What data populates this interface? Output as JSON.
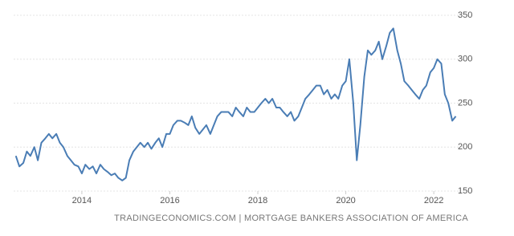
{
  "chart_data": {
    "type": "line",
    "source": "TRADINGECONOMICS.COM | MORTGAGE BANKERS ASSOCIATION OF AMERICA",
    "x": [
      2012.5,
      2012.58,
      2012.67,
      2012.75,
      2012.83,
      2012.92,
      2013,
      2013.08,
      2013.17,
      2013.25,
      2013.33,
      2013.42,
      2013.5,
      2013.58,
      2013.67,
      2013.75,
      2013.83,
      2013.92,
      2014,
      2014.08,
      2014.17,
      2014.25,
      2014.33,
      2014.42,
      2014.5,
      2014.58,
      2014.67,
      2014.75,
      2014.83,
      2014.92,
      2015,
      2015.08,
      2015.17,
      2015.25,
      2015.33,
      2015.42,
      2015.5,
      2015.58,
      2015.67,
      2015.75,
      2015.83,
      2015.92,
      2016,
      2016.08,
      2016.17,
      2016.25,
      2016.33,
      2016.42,
      2016.5,
      2016.58,
      2016.67,
      2016.75,
      2016.83,
      2016.92,
      2017,
      2017.08,
      2017.17,
      2017.25,
      2017.33,
      2017.42,
      2017.5,
      2017.58,
      2017.67,
      2017.75,
      2017.83,
      2017.92,
      2018,
      2018.08,
      2018.17,
      2018.25,
      2018.33,
      2018.42,
      2018.5,
      2018.58,
      2018.67,
      2018.75,
      2018.83,
      2018.92,
      2019,
      2019.08,
      2019.17,
      2019.25,
      2019.33,
      2019.42,
      2019.5,
      2019.58,
      2019.67,
      2019.75,
      2019.83,
      2019.92,
      2020,
      2020.08,
      2020.17,
      2020.25,
      2020.33,
      2020.42,
      2020.5,
      2020.58,
      2020.67,
      2020.75,
      2020.83,
      2020.92,
      2021,
      2021.08,
      2021.17,
      2021.25,
      2021.33,
      2021.42,
      2021.5,
      2021.58,
      2021.67,
      2021.75,
      2021.83,
      2021.92,
      2022,
      2022.08,
      2022.17,
      2022.25,
      2022.33,
      2022.42,
      2022.5
    ],
    "series": [
      {
        "color": "#4a7db5",
        "values": [
          190,
          178,
          182,
          195,
          190,
          200,
          185,
          205,
          210,
          215,
          210,
          215,
          205,
          200,
          190,
          185,
          180,
          178,
          170,
          180,
          175,
          178,
          170,
          180,
          175,
          172,
          168,
          170,
          165,
          162,
          165,
          185,
          195,
          200,
          205,
          200,
          205,
          198,
          205,
          210,
          200,
          215,
          215,
          225,
          230,
          230,
          228,
          225,
          235,
          222,
          215,
          220,
          225,
          215,
          225,
          235,
          240,
          240,
          240,
          235,
          245,
          240,
          235,
          245,
          240,
          240,
          245,
          250,
          255,
          250,
          255,
          245,
          245,
          240,
          235,
          240,
          230,
          235,
          245,
          255,
          260,
          265,
          270,
          270,
          260,
          265,
          255,
          260,
          255,
          270,
          275,
          300,
          250,
          185,
          225,
          280,
          310,
          305,
          310,
          320,
          300,
          315,
          330,
          335,
          310,
          295,
          275,
          270,
          265,
          260,
          255,
          265,
          270,
          285,
          290,
          300,
          295,
          260,
          250,
          230,
          235
        ]
      }
    ],
    "xlim": [
      2012.45,
      2022.6
    ],
    "xticks": [
      2014,
      2016,
      2018,
      2020,
      2022
    ],
    "ylim": [
      150,
      350
    ],
    "yticks": [
      150,
      200,
      250,
      300,
      350
    ],
    "grid": true
  }
}
